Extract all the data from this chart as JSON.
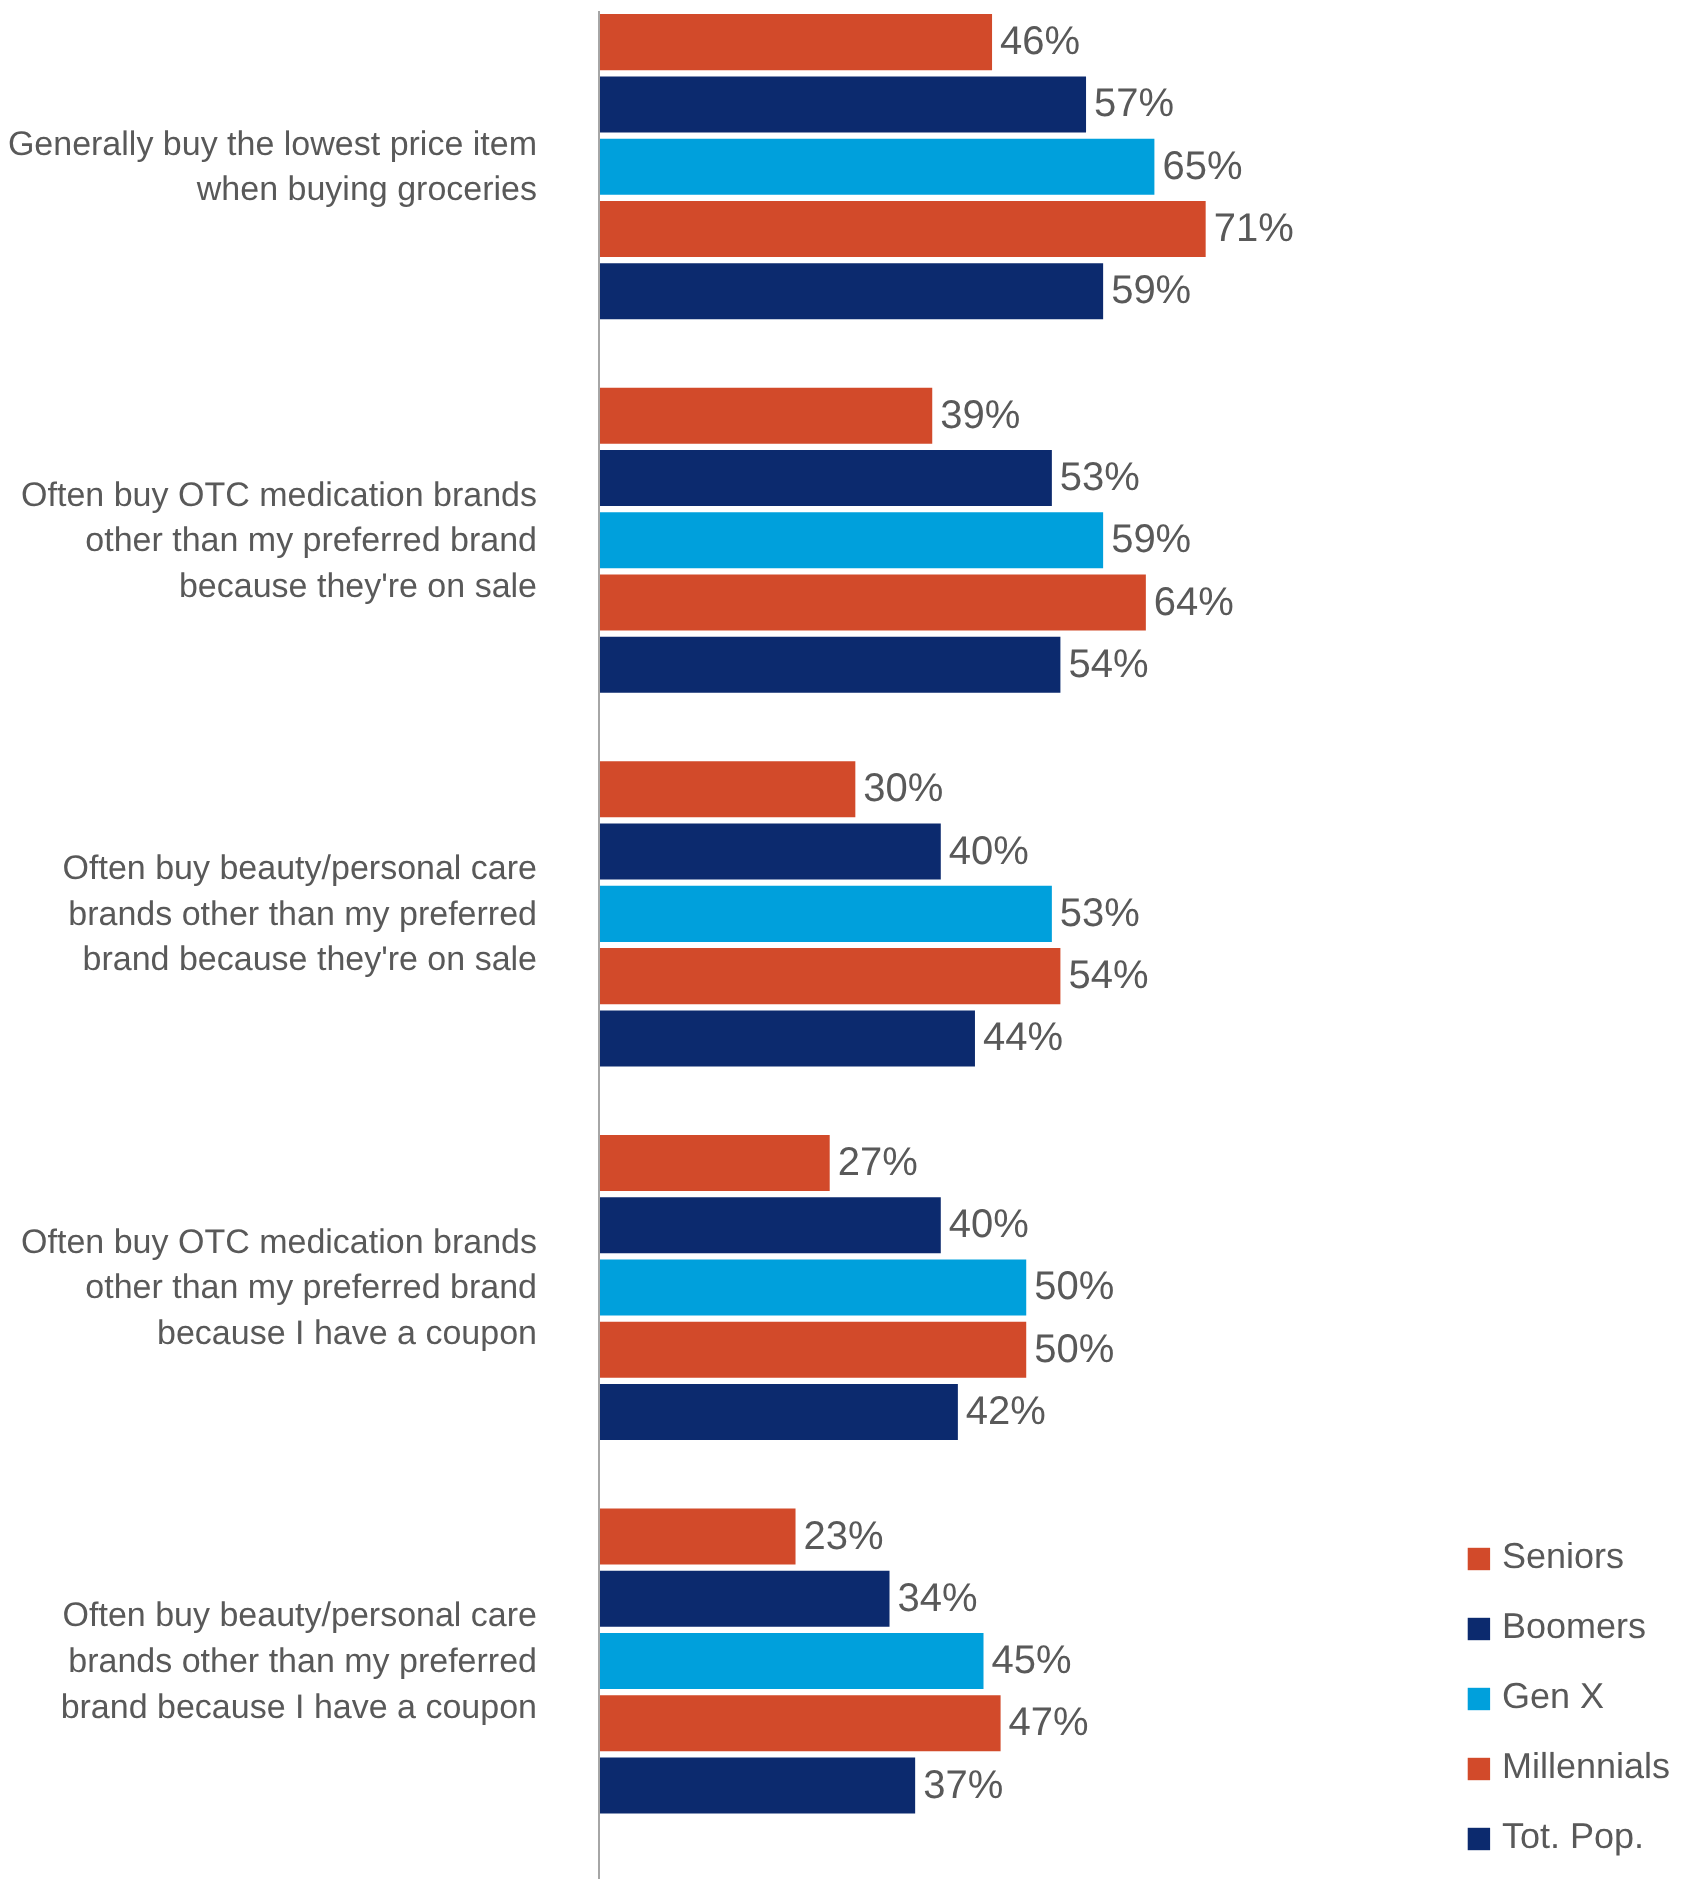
{
  "chart_data": {
    "type": "bar",
    "orientation": "horizontal",
    "categories": [
      "Generally buy the lowest price item\nwhen buying groceries",
      "Often buy OTC medication brands\nother than my preferred brand\nbecause they're on sale",
      "Often buy beauty/personal care\nbrands other than my preferred\nbrand because they're on sale",
      "Often buy OTC medication brands\nother than my preferred brand\nbecause I have a coupon",
      "Often buy beauty/personal care\nbrands other than my preferred\nbrand because I have a coupon"
    ],
    "series": [
      {
        "name": "Seniors",
        "color": "#d24a2a",
        "values": [
          46,
          39,
          30,
          27,
          23
        ],
        "value_labels": [
          "46%",
          "39%",
          "30%",
          "27%",
          "23%"
        ]
      },
      {
        "name": "Boomers",
        "color": "#0c2a6e",
        "values": [
          57,
          53,
          40,
          40,
          34
        ],
        "value_labels": [
          "57%",
          "53%",
          "40%",
          "40%",
          "34%"
        ]
      },
      {
        "name": "Gen X",
        "color": "#00a0dc",
        "values": [
          65,
          59,
          53,
          50,
          45
        ],
        "value_labels": [
          "65%",
          "59%",
          "53%",
          "50%",
          "45%"
        ]
      },
      {
        "name": "Millennials",
        "color": "#d24a2a",
        "values": [
          71,
          64,
          54,
          50,
          47
        ],
        "value_labels": [
          "71%",
          "64%",
          "54%",
          "50%",
          "47%"
        ]
      },
      {
        "name": "Tot. Pop.",
        "color": "#0c2a6e",
        "values": [
          59,
          54,
          44,
          42,
          37
        ],
        "value_labels": [
          "59%",
          "54%",
          "44%",
          "42%",
          "37%"
        ]
      }
    ],
    "legend": "bottom right",
    "grid": false
  }
}
